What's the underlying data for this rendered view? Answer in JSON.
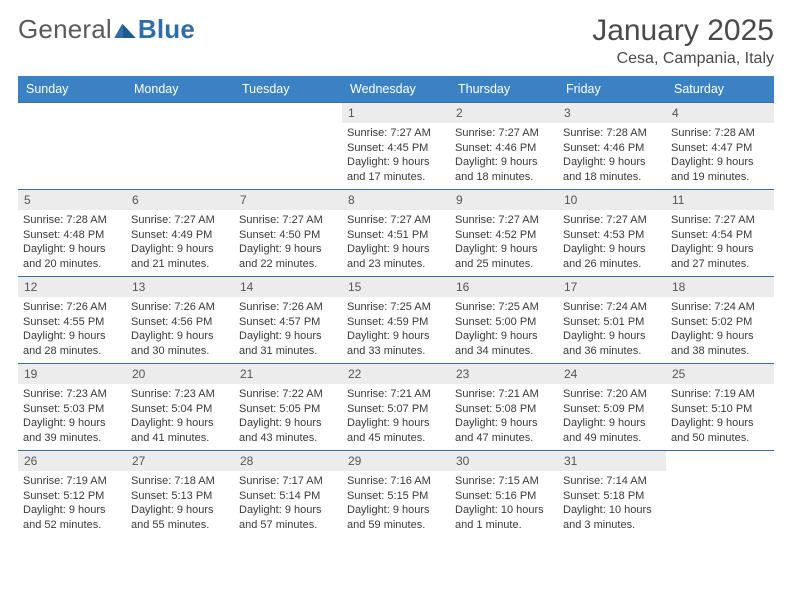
{
  "brand": {
    "part1": "General",
    "part2": "Blue"
  },
  "title": "January 2025",
  "location": "Cesa, Campania, Italy",
  "colors": {
    "header_bg": "#3b82c4",
    "header_text": "#ffffff",
    "daynum_bg": "#ececec",
    "border": "#3b6fa0",
    "body_text": "#3a3a3a",
    "title_text": "#4a4a4a"
  },
  "layout": {
    "first_weekday_index": 3,
    "days_in_month": 31,
    "weeks": 5,
    "columns": 7
  },
  "weekdays": [
    "Sunday",
    "Monday",
    "Tuesday",
    "Wednesday",
    "Thursday",
    "Friday",
    "Saturday"
  ],
  "days": [
    {
      "n": 1,
      "sunrise": "7:27 AM",
      "sunset": "4:45 PM",
      "daylight": "9 hours and 17 minutes."
    },
    {
      "n": 2,
      "sunrise": "7:27 AM",
      "sunset": "4:46 PM",
      "daylight": "9 hours and 18 minutes."
    },
    {
      "n": 3,
      "sunrise": "7:28 AM",
      "sunset": "4:46 PM",
      "daylight": "9 hours and 18 minutes."
    },
    {
      "n": 4,
      "sunrise": "7:28 AM",
      "sunset": "4:47 PM",
      "daylight": "9 hours and 19 minutes."
    },
    {
      "n": 5,
      "sunrise": "7:28 AM",
      "sunset": "4:48 PM",
      "daylight": "9 hours and 20 minutes."
    },
    {
      "n": 6,
      "sunrise": "7:27 AM",
      "sunset": "4:49 PM",
      "daylight": "9 hours and 21 minutes."
    },
    {
      "n": 7,
      "sunrise": "7:27 AM",
      "sunset": "4:50 PM",
      "daylight": "9 hours and 22 minutes."
    },
    {
      "n": 8,
      "sunrise": "7:27 AM",
      "sunset": "4:51 PM",
      "daylight": "9 hours and 23 minutes."
    },
    {
      "n": 9,
      "sunrise": "7:27 AM",
      "sunset": "4:52 PM",
      "daylight": "9 hours and 25 minutes."
    },
    {
      "n": 10,
      "sunrise": "7:27 AM",
      "sunset": "4:53 PM",
      "daylight": "9 hours and 26 minutes."
    },
    {
      "n": 11,
      "sunrise": "7:27 AM",
      "sunset": "4:54 PM",
      "daylight": "9 hours and 27 minutes."
    },
    {
      "n": 12,
      "sunrise": "7:26 AM",
      "sunset": "4:55 PM",
      "daylight": "9 hours and 28 minutes."
    },
    {
      "n": 13,
      "sunrise": "7:26 AM",
      "sunset": "4:56 PM",
      "daylight": "9 hours and 30 minutes."
    },
    {
      "n": 14,
      "sunrise": "7:26 AM",
      "sunset": "4:57 PM",
      "daylight": "9 hours and 31 minutes."
    },
    {
      "n": 15,
      "sunrise": "7:25 AM",
      "sunset": "4:59 PM",
      "daylight": "9 hours and 33 minutes."
    },
    {
      "n": 16,
      "sunrise": "7:25 AM",
      "sunset": "5:00 PM",
      "daylight": "9 hours and 34 minutes."
    },
    {
      "n": 17,
      "sunrise": "7:24 AM",
      "sunset": "5:01 PM",
      "daylight": "9 hours and 36 minutes."
    },
    {
      "n": 18,
      "sunrise": "7:24 AM",
      "sunset": "5:02 PM",
      "daylight": "9 hours and 38 minutes."
    },
    {
      "n": 19,
      "sunrise": "7:23 AM",
      "sunset": "5:03 PM",
      "daylight": "9 hours and 39 minutes."
    },
    {
      "n": 20,
      "sunrise": "7:23 AM",
      "sunset": "5:04 PM",
      "daylight": "9 hours and 41 minutes."
    },
    {
      "n": 21,
      "sunrise": "7:22 AM",
      "sunset": "5:05 PM",
      "daylight": "9 hours and 43 minutes."
    },
    {
      "n": 22,
      "sunrise": "7:21 AM",
      "sunset": "5:07 PM",
      "daylight": "9 hours and 45 minutes."
    },
    {
      "n": 23,
      "sunrise": "7:21 AM",
      "sunset": "5:08 PM",
      "daylight": "9 hours and 47 minutes."
    },
    {
      "n": 24,
      "sunrise": "7:20 AM",
      "sunset": "5:09 PM",
      "daylight": "9 hours and 49 minutes."
    },
    {
      "n": 25,
      "sunrise": "7:19 AM",
      "sunset": "5:10 PM",
      "daylight": "9 hours and 50 minutes."
    },
    {
      "n": 26,
      "sunrise": "7:19 AM",
      "sunset": "5:12 PM",
      "daylight": "9 hours and 52 minutes."
    },
    {
      "n": 27,
      "sunrise": "7:18 AM",
      "sunset": "5:13 PM",
      "daylight": "9 hours and 55 minutes."
    },
    {
      "n": 28,
      "sunrise": "7:17 AM",
      "sunset": "5:14 PM",
      "daylight": "9 hours and 57 minutes."
    },
    {
      "n": 29,
      "sunrise": "7:16 AM",
      "sunset": "5:15 PM",
      "daylight": "9 hours and 59 minutes."
    },
    {
      "n": 30,
      "sunrise": "7:15 AM",
      "sunset": "5:16 PM",
      "daylight": "10 hours and 1 minute."
    },
    {
      "n": 31,
      "sunrise": "7:14 AM",
      "sunset": "5:18 PM",
      "daylight": "10 hours and 3 minutes."
    }
  ],
  "labels": {
    "sunrise": "Sunrise:",
    "sunset": "Sunset:",
    "daylight": "Daylight:"
  }
}
